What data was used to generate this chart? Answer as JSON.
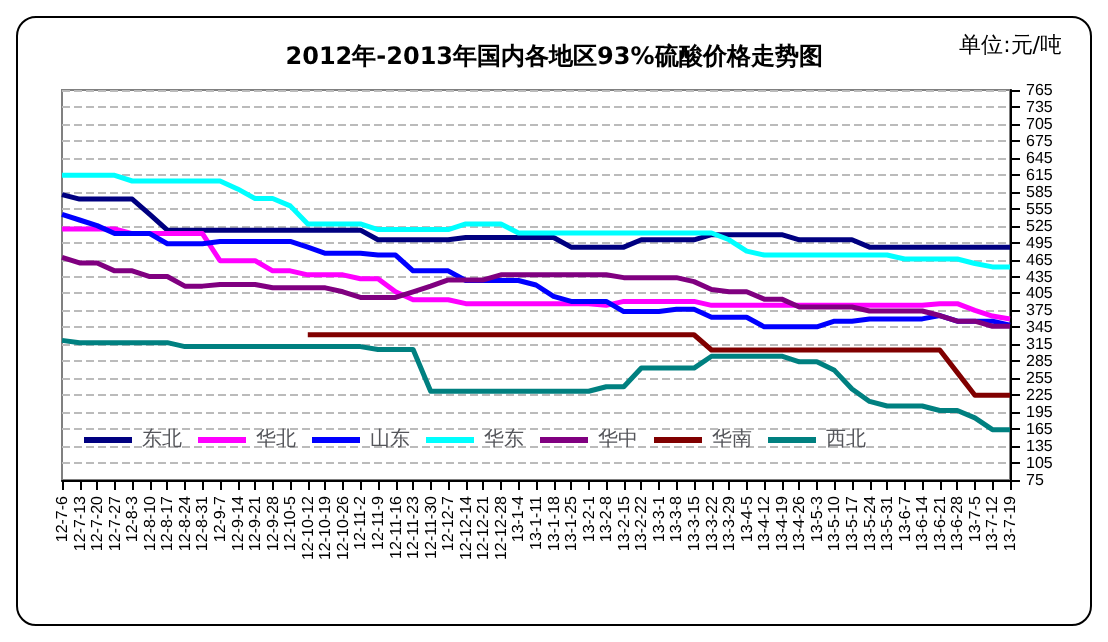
{
  "chart_data": {
    "type": "line",
    "title": "2012年-2013年国内各地区93%硫酸价格走势图",
    "annotations": [
      "单位:元/吨"
    ],
    "categories": [
      "12-7-6",
      "12-7-13",
      "12-7-20",
      "12-7-27",
      "12-8-3",
      "12-8-10",
      "12-8-17",
      "12-8-24",
      "12-8-31",
      "12-9-7",
      "12-9-14",
      "12-9-21",
      "12-9-28",
      "12-10-5",
      "12-10-12",
      "12-10-19",
      "12-10-26",
      "12-11-2",
      "12-11-9",
      "12-11-16",
      "12-11-23",
      "12-11-30",
      "12-12-7",
      "12-12-14",
      "12-12-21",
      "12-12-28",
      "13-1-4",
      "13-1-11",
      "13-1-18",
      "13-1-25",
      "13-2-1",
      "13-2-8",
      "13-2-15",
      "13-2-22",
      "13-3-1",
      "13-3-8",
      "13-3-15",
      "13-3-22",
      "13-3-29",
      "13-4-5",
      "13-4-12",
      "13-4-19",
      "13-4-26",
      "13-5-3",
      "13-5-10",
      "13-5-17",
      "13-5-24",
      "13-5-31",
      "13-6-7",
      "13-6-14",
      "13-6-21",
      "13-6-28",
      "13-7-5",
      "13-7-12",
      "13-7-19"
    ],
    "series": [
      {
        "name": "东北",
        "color": "#000080",
        "values": [
          580,
          572,
          572,
          572,
          572,
          545,
          517,
          517,
          517,
          517,
          517,
          517,
          517,
          517,
          517,
          517,
          517,
          517,
          500,
          500,
          500,
          500,
          500,
          504,
          504,
          504,
          504,
          504,
          504,
          487,
          487,
          487,
          487,
          500,
          500,
          500,
          500,
          509,
          509,
          509,
          509,
          509,
          500,
          500,
          500,
          500,
          487,
          487,
          487,
          487,
          487,
          487,
          487,
          487,
          487
        ]
      },
      {
        "name": "华北",
        "color": "#ff00ff",
        "values": [
          519,
          519,
          519,
          519,
          511,
          511,
          511,
          511,
          511,
          463,
          463,
          463,
          445,
          445,
          438,
          438,
          438,
          431,
          431,
          408,
          394,
          394,
          394,
          387,
          387,
          387,
          387,
          387,
          387,
          387,
          387,
          384,
          391,
          391,
          391,
          391,
          391,
          384,
          384,
          384,
          384,
          384,
          384,
          384,
          384,
          384,
          384,
          384,
          384,
          384,
          387,
          387,
          375,
          365,
          360
        ]
      },
      {
        "name": "山东",
        "color": "#0000ff",
        "values": [
          545,
          535,
          525,
          511,
          511,
          511,
          493,
          493,
          493,
          497,
          497,
          497,
          497,
          497,
          487,
          476,
          476,
          476,
          473,
          473,
          445,
          445,
          445,
          428,
          428,
          428,
          428,
          420,
          400,
          391,
          391,
          391,
          373,
          373,
          373,
          377,
          377,
          363,
          363,
          363,
          346,
          346,
          346,
          346,
          356,
          356,
          360,
          360,
          360,
          360,
          366,
          356,
          356,
          356,
          349
        ]
      },
      {
        "name": "华东",
        "color": "#00ffff",
        "values": [
          614,
          614,
          614,
          614,
          604,
          604,
          604,
          604,
          604,
          604,
          590,
          573,
          573,
          560,
          528,
          528,
          528,
          528,
          518,
          518,
          518,
          518,
          518,
          528,
          528,
          528,
          512,
          512,
          512,
          512,
          512,
          512,
          512,
          512,
          512,
          512,
          512,
          512,
          500,
          480,
          473,
          473,
          473,
          473,
          473,
          473,
          473,
          473,
          466,
          466,
          466,
          466,
          458,
          452,
          452
        ]
      },
      {
        "name": "华中",
        "color": "#800080",
        "values": [
          469,
          459,
          459,
          445,
          445,
          435,
          435,
          418,
          418,
          421,
          421,
          421,
          415,
          415,
          415,
          415,
          408,
          398,
          398,
          398,
          408,
          418,
          429,
          429,
          429,
          438,
          438,
          438,
          438,
          438,
          438,
          438,
          433,
          433,
          433,
          433,
          426,
          412,
          408,
          408,
          395,
          395,
          381,
          381,
          381,
          381,
          374,
          374,
          374,
          374,
          366,
          356,
          356,
          347,
          347
        ]
      },
      {
        "name": "华南",
        "color": "#800000",
        "values": [
          null,
          null,
          null,
          null,
          null,
          null,
          null,
          null,
          null,
          null,
          null,
          null,
          null,
          null,
          332,
          332,
          332,
          332,
          332,
          332,
          332,
          332,
          332,
          332,
          332,
          332,
          332,
          332,
          332,
          332,
          332,
          332,
          332,
          332,
          332,
          332,
          332,
          305,
          305,
          305,
          305,
          305,
          305,
          305,
          305,
          305,
          305,
          305,
          305,
          305,
          305,
          265,
          225,
          225,
          225
        ]
      },
      {
        "name": "西北",
        "color": "#008080",
        "values": [
          322,
          318,
          318,
          318,
          318,
          318,
          318,
          311,
          311,
          311,
          311,
          311,
          311,
          311,
          311,
          311,
          311,
          311,
          306,
          306,
          306,
          232,
          232,
          232,
          232,
          232,
          232,
          232,
          232,
          232,
          232,
          240,
          240,
          273,
          273,
          273,
          273,
          294,
          294,
          294,
          294,
          294,
          284,
          284,
          269,
          236,
          214,
          206,
          206,
          206,
          198,
          198,
          185,
          164,
          164
        ]
      }
    ],
    "ylim": [
      75,
      765
    ],
    "yticks": [
      75,
      105,
      135,
      165,
      195,
      225,
      255,
      285,
      315,
      345,
      375,
      405,
      435,
      465,
      495,
      525,
      555,
      585,
      615,
      645,
      675,
      705,
      735,
      765
    ],
    "grid": "y",
    "legend": "bottom",
    "marker": "none",
    "line_style": "solid"
  }
}
